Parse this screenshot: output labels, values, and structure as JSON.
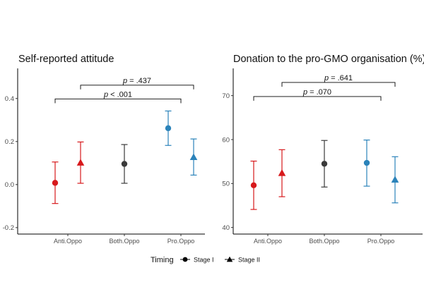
{
  "chart_data": [
    {
      "type": "scatter",
      "title": "Self-reported attitude",
      "categories": [
        "Anti.Oppo",
        "Both.Oppo",
        "Pro.Oppo"
      ],
      "ylim": [
        -0.23,
        0.54
      ],
      "yticks": [
        -0.2,
        0.0,
        0.2,
        0.4
      ],
      "ytick_labels": [
        "-0.2",
        "0.0",
        "0.2",
        "0.4"
      ],
      "grid": false,
      "series": [
        {
          "marker": "circle",
          "category": "Anti.Oppo",
          "y": 0.008,
          "low": -0.088,
          "high": 0.105,
          "color": "#d7191c"
        },
        {
          "marker": "triangle",
          "category": "Anti.Oppo",
          "y": 0.102,
          "low": 0.006,
          "high": 0.198,
          "color": "#d7191c"
        },
        {
          "marker": "circle",
          "category": "Both.Oppo",
          "y": 0.096,
          "low": 0.006,
          "high": 0.186,
          "color": "#3a3a3a"
        },
        {
          "marker": "circle",
          "category": "Pro.Oppo",
          "y": 0.262,
          "low": 0.182,
          "high": 0.342,
          "color": "#2b83ba"
        },
        {
          "marker": "triangle",
          "category": "Pro.Oppo",
          "y": 0.128,
          "low": 0.044,
          "high": 0.212,
          "color": "#2b83ba"
        }
      ],
      "annotations": [
        {
          "italic": "p",
          "text": " < .001",
          "from": "Anti.Oppo",
          "to": "Pro.Oppo",
          "level": 0.398
        },
        {
          "italic": "p",
          "text": " = .437",
          "from": "Anti.Oppo",
          "to": "Pro.Oppo",
          "level": 0.462
        }
      ]
    },
    {
      "type": "scatter",
      "title": "Donation to the pro-GMO organisation (%)",
      "categories": [
        "Anti.Oppo",
        "Both.Oppo",
        "Pro.Oppo"
      ],
      "ylim": [
        38.5,
        76.2
      ],
      "yticks": [
        40,
        50,
        60,
        70
      ],
      "ytick_labels": [
        "40",
        "50",
        "60",
        "70"
      ],
      "grid": false,
      "series": [
        {
          "marker": "circle",
          "category": "Anti.Oppo",
          "y": 49.6,
          "low": 44.1,
          "high": 55.1,
          "color": "#d7191c"
        },
        {
          "marker": "triangle",
          "category": "Anti.Oppo",
          "y": 52.4,
          "low": 47.0,
          "high": 57.7,
          "color": "#d7191c"
        },
        {
          "marker": "circle",
          "category": "Both.Oppo",
          "y": 54.5,
          "low": 49.2,
          "high": 59.8,
          "color": "#3a3a3a"
        },
        {
          "marker": "circle",
          "category": "Pro.Oppo",
          "y": 54.7,
          "low": 49.4,
          "high": 59.9,
          "color": "#2b83ba"
        },
        {
          "marker": "triangle",
          "category": "Pro.Oppo",
          "y": 50.9,
          "low": 45.6,
          "high": 56.1,
          "color": "#2b83ba"
        }
      ],
      "annotations": [
        {
          "italic": "p",
          "text": " = .070",
          "from": "Anti.Oppo",
          "to": "Pro.Oppo",
          "level": 69.8
        },
        {
          "italic": "p",
          "text": " = .641",
          "from": "Anti.Oppo",
          "to": "Pro.Oppo",
          "level": 73.0
        }
      ]
    }
  ],
  "legend": {
    "title": "Timing",
    "placement": "bottom",
    "items": [
      {
        "marker": "circle",
        "label": "Stage I"
      },
      {
        "marker": "triangle",
        "label": "Stage II"
      }
    ]
  }
}
